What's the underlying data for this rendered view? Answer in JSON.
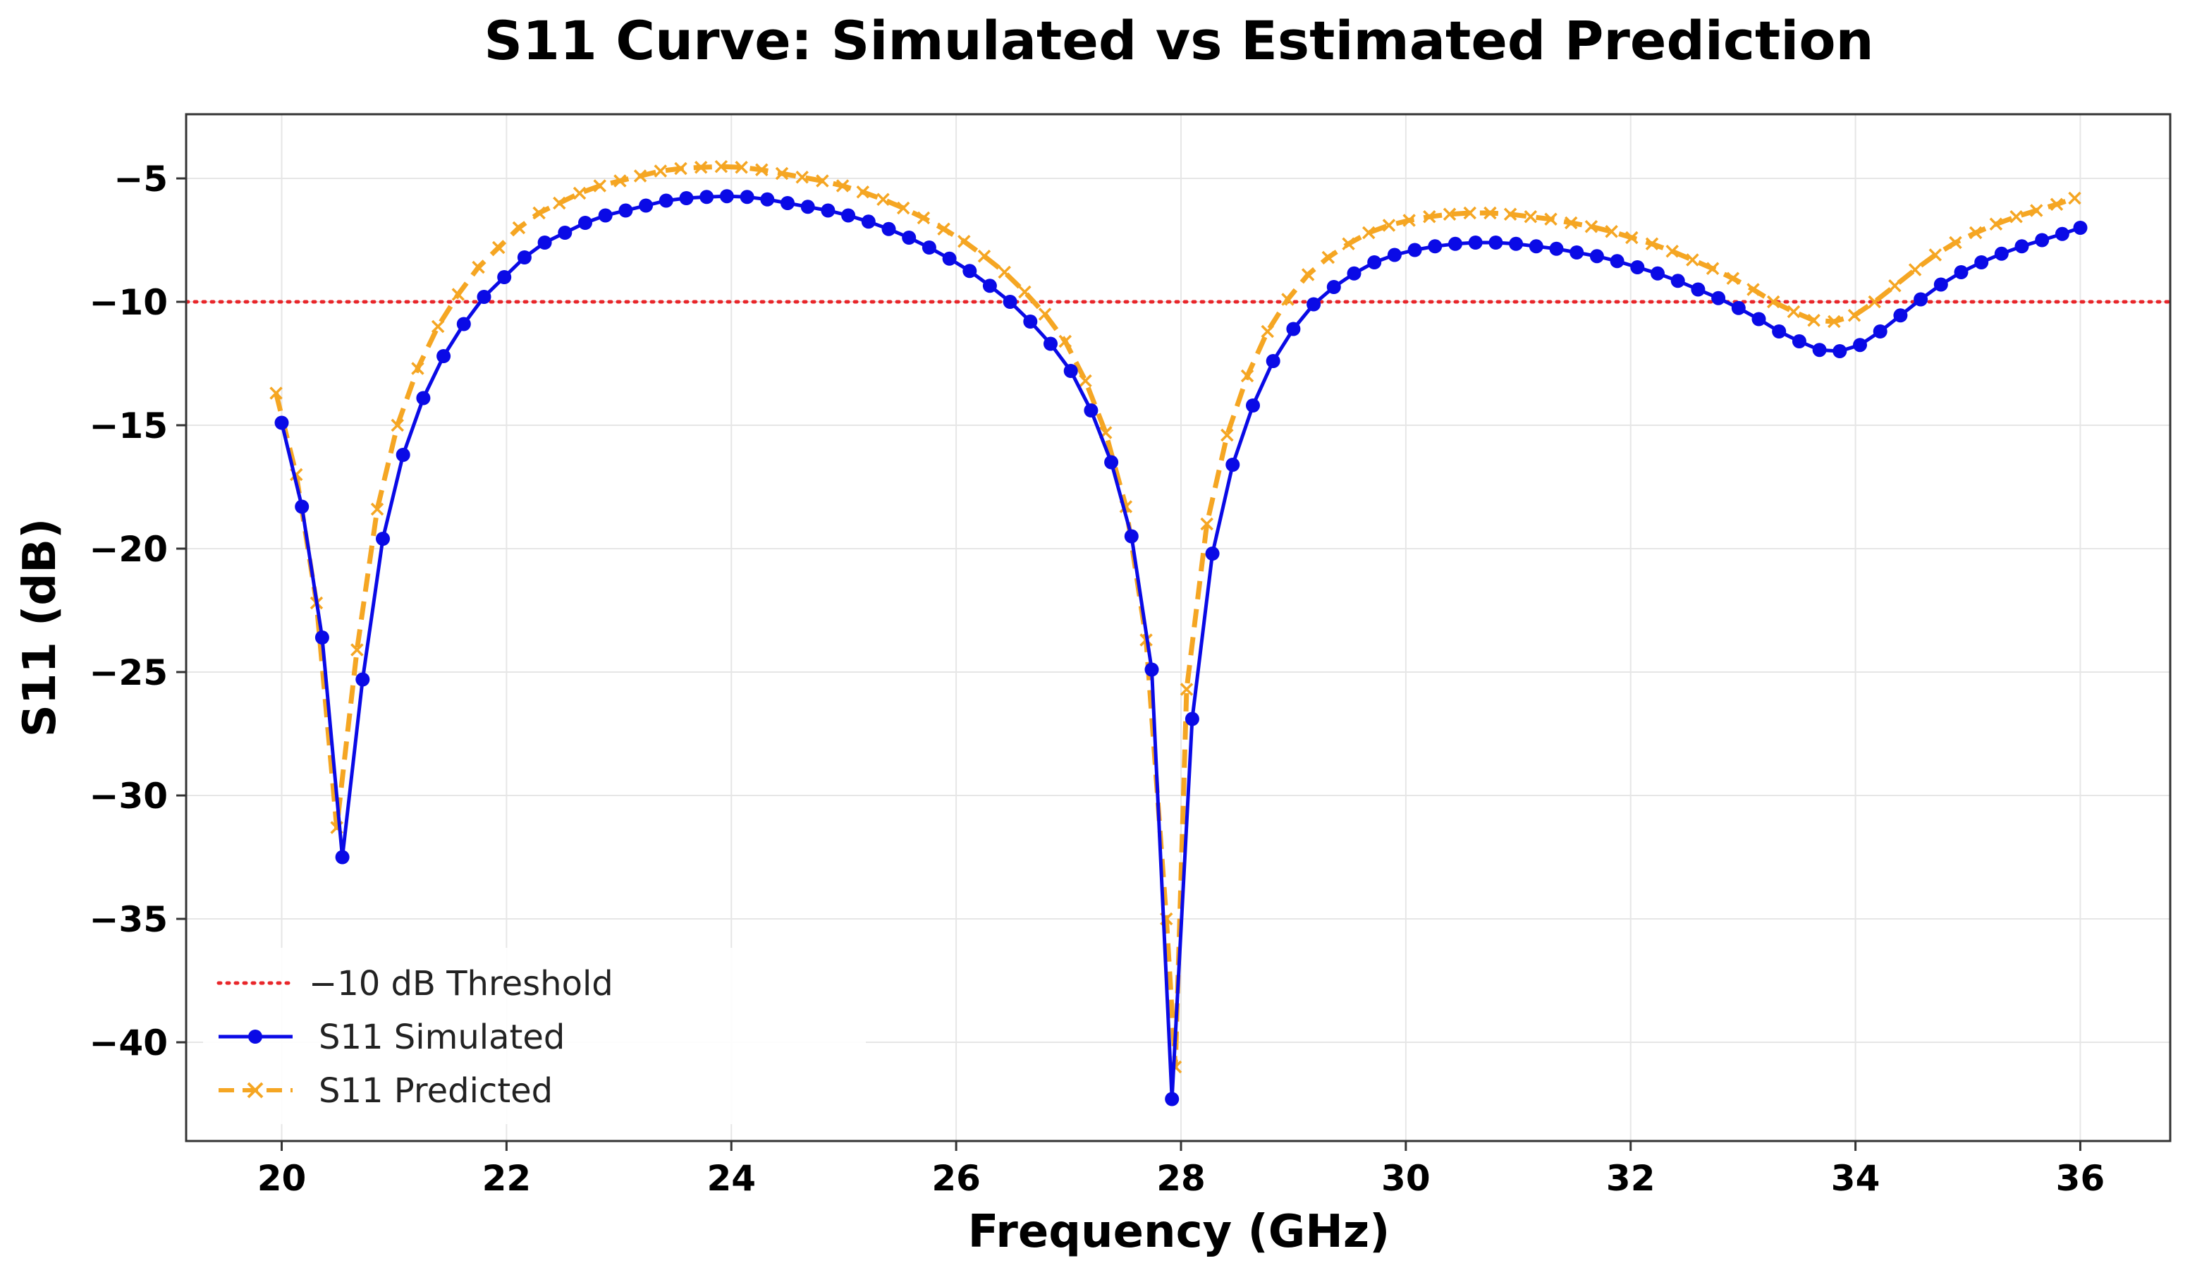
{
  "chart_data": {
    "type": "line",
    "title": "S11 Curve: Simulated vs Estimated Prediction",
    "xlabel": "Frequency (GHz)",
    "ylabel": "S11 (dB)",
    "xlim": [
      19.15,
      36.8
    ],
    "ylim": [
      -44,
      -2.4
    ],
    "xticks": [
      20,
      22,
      24,
      26,
      28,
      30,
      32,
      34,
      36
    ],
    "yticks": [
      -5,
      -10,
      -15,
      -20,
      -25,
      -30,
      -35,
      -40
    ],
    "xtick_labels": [
      "20",
      "22",
      "24",
      "26",
      "28",
      "30",
      "32",
      "34",
      "36"
    ],
    "ytick_labels": [
      "−5",
      "−10",
      "−15",
      "−20",
      "−25",
      "−30",
      "−35",
      "−40"
    ],
    "grid": true,
    "legend_position": "bottom-left",
    "threshold": {
      "name": "−10 dB Threshold",
      "value": -10,
      "color": "#e8262a",
      "style": "dotted"
    },
    "series": [
      {
        "name": "S11 Simulated",
        "color": "#0a0ae6",
        "marker": "circle",
        "style": "solid",
        "x": [
          20.0,
          20.18,
          20.36,
          20.54,
          20.72,
          20.9,
          21.08,
          21.26,
          21.44,
          21.62,
          21.8,
          21.98,
          22.16,
          22.34,
          22.52,
          22.7,
          22.88,
          23.06,
          23.24,
          23.42,
          23.6,
          23.78,
          23.96,
          24.14,
          24.32,
          24.5,
          24.68,
          24.86,
          25.04,
          25.22,
          25.4,
          25.58,
          25.76,
          25.94,
          26.12,
          26.3,
          26.48,
          26.66,
          26.84,
          27.02,
          27.2,
          27.38,
          27.56,
          27.74,
          27.92,
          28.1,
          28.28,
          28.46,
          28.64,
          28.82,
          29.0,
          29.18,
          29.36,
          29.54,
          29.72,
          29.9,
          30.08,
          30.26,
          30.44,
          30.62,
          30.8,
          30.98,
          31.16,
          31.34,
          31.52,
          31.7,
          31.88,
          32.06,
          32.24,
          32.42,
          32.6,
          32.78,
          32.96,
          33.14,
          33.32,
          33.5,
          33.68,
          33.86,
          34.04,
          34.22,
          34.4,
          34.58,
          34.76,
          34.94,
          35.12,
          35.3,
          35.48,
          35.66,
          35.84,
          36.0
        ],
        "values": [
          -14.9,
          -18.3,
          -23.6,
          -32.5,
          -25.3,
          -19.6,
          -16.2,
          -13.9,
          -12.2,
          -10.9,
          -9.8,
          -9.0,
          -8.2,
          -7.6,
          -7.2,
          -6.8,
          -6.5,
          -6.3,
          -6.1,
          -5.9,
          -5.8,
          -5.75,
          -5.72,
          -5.75,
          -5.85,
          -6.0,
          -6.15,
          -6.3,
          -6.5,
          -6.75,
          -7.05,
          -7.4,
          -7.8,
          -8.25,
          -8.75,
          -9.35,
          -10.0,
          -10.8,
          -11.7,
          -12.8,
          -14.4,
          -16.5,
          -19.5,
          -24.9,
          -42.3,
          -26.9,
          -20.2,
          -16.6,
          -14.2,
          -12.4,
          -11.1,
          -10.1,
          -9.4,
          -8.85,
          -8.4,
          -8.1,
          -7.9,
          -7.75,
          -7.65,
          -7.6,
          -7.6,
          -7.65,
          -7.75,
          -7.85,
          -8.0,
          -8.15,
          -8.35,
          -8.6,
          -8.85,
          -9.15,
          -9.5,
          -9.85,
          -10.25,
          -10.7,
          -11.2,
          -11.6,
          -11.95,
          -12.0,
          -11.75,
          -11.2,
          -10.55,
          -9.9,
          -9.3,
          -8.8,
          -8.4,
          -8.05,
          -7.75,
          -7.5,
          -7.25,
          -7.0
        ]
      },
      {
        "name": "S11 Predicted",
        "color": "#f5a623",
        "marker": "x",
        "style": "dashed",
        "x": [
          19.95,
          20.13,
          20.31,
          20.49,
          20.67,
          20.85,
          21.03,
          21.21,
          21.39,
          21.57,
          21.75,
          21.93,
          22.11,
          22.29,
          22.47,
          22.65,
          22.83,
          23.01,
          23.19,
          23.37,
          23.55,
          23.73,
          23.91,
          24.09,
          24.27,
          24.45,
          24.63,
          24.81,
          24.99,
          25.17,
          25.35,
          25.53,
          25.71,
          25.89,
          26.07,
          26.25,
          26.43,
          26.61,
          26.79,
          26.97,
          27.15,
          27.33,
          27.51,
          27.69,
          27.87,
          27.95,
          28.05,
          28.23,
          28.41,
          28.59,
          28.77,
          28.95,
          29.13,
          29.31,
          29.49,
          29.67,
          29.85,
          30.03,
          30.21,
          30.39,
          30.57,
          30.75,
          30.93,
          31.11,
          31.29,
          31.47,
          31.65,
          31.83,
          32.01,
          32.19,
          32.37,
          32.55,
          32.73,
          32.91,
          33.09,
          33.27,
          33.45,
          33.63,
          33.81,
          33.99,
          34.17,
          34.35,
          34.53,
          34.71,
          34.89,
          35.07,
          35.25,
          35.43,
          35.61,
          35.79,
          35.95
        ],
        "values": [
          -13.7,
          -17.0,
          -22.2,
          -31.3,
          -24.1,
          -18.4,
          -15.0,
          -12.7,
          -11.0,
          -9.7,
          -8.6,
          -7.8,
          -7.0,
          -6.4,
          -6.0,
          -5.6,
          -5.3,
          -5.1,
          -4.9,
          -4.7,
          -4.6,
          -4.55,
          -4.52,
          -4.55,
          -4.65,
          -4.8,
          -4.95,
          -5.1,
          -5.3,
          -5.55,
          -5.85,
          -6.2,
          -6.6,
          -7.05,
          -7.55,
          -8.15,
          -8.8,
          -9.6,
          -10.5,
          -11.6,
          -13.2,
          -15.3,
          -18.3,
          -23.7,
          -35.0,
          -41.0,
          -25.7,
          -19.0,
          -15.4,
          -13.0,
          -11.2,
          -9.9,
          -8.9,
          -8.2,
          -7.65,
          -7.2,
          -6.9,
          -6.7,
          -6.55,
          -6.45,
          -6.4,
          -6.4,
          -6.45,
          -6.55,
          -6.65,
          -6.8,
          -6.95,
          -7.15,
          -7.4,
          -7.65,
          -7.95,
          -8.3,
          -8.65,
          -9.05,
          -9.5,
          -10.0,
          -10.4,
          -10.75,
          -10.8,
          -10.55,
          -10.0,
          -9.35,
          -8.7,
          -8.1,
          -7.6,
          -7.2,
          -6.85,
          -6.55,
          -6.3,
          -6.05,
          -5.8
        ]
      }
    ]
  }
}
